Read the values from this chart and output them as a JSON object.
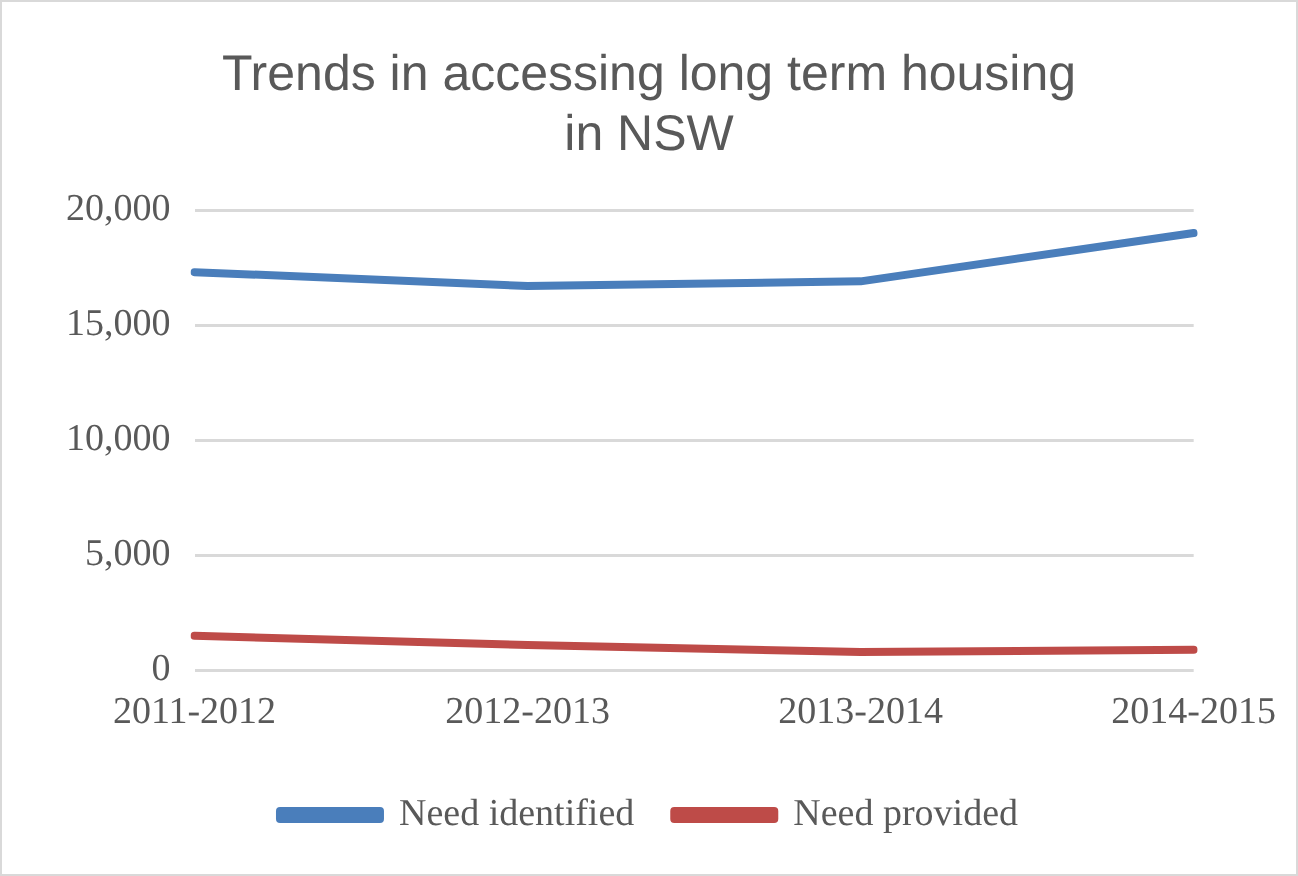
{
  "chart_data": {
    "type": "line",
    "title": "Trends in accessing long term housing in NSW",
    "categories": [
      "2011-2012",
      "2012-2013",
      "2013-2014",
      "2014-2015"
    ],
    "series": [
      {
        "name": "Need identified",
        "color": "#4a7ebb",
        "values": [
          17300,
          16700,
          16900,
          19000
        ]
      },
      {
        "name": "Need provided",
        "color": "#be4b48",
        "values": [
          1500,
          1100,
          800,
          900
        ]
      }
    ],
    "ylim": [
      0,
      20000
    ],
    "yticks": [
      {
        "value": 0,
        "label": "0"
      },
      {
        "value": 5000,
        "label": "5,000"
      },
      {
        "value": 10000,
        "label": "10,000"
      },
      {
        "value": 15000,
        "label": "15,000"
      },
      {
        "value": 20000,
        "label": "20,000"
      }
    ],
    "grid": "y",
    "legend": "bottom",
    "marker": "none",
    "line_style": "solid"
  }
}
